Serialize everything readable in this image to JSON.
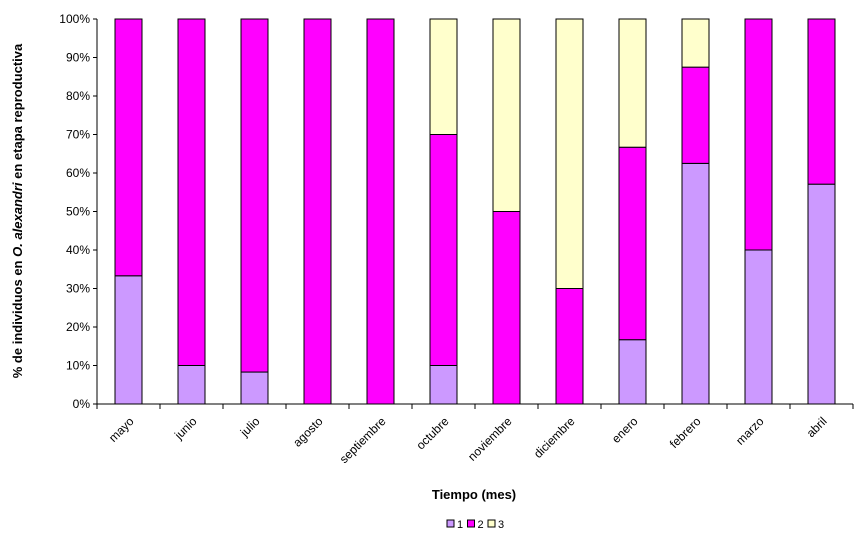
{
  "chart_data": {
    "type": "bar",
    "stacked": "percent",
    "categories": [
      "mayo",
      "junio",
      "julio",
      "agosto",
      "septiembre",
      "octubre",
      "noviembre",
      "diciembre",
      "enero",
      "febrero",
      "marzo",
      "abril"
    ],
    "series": [
      {
        "name": "1",
        "color": "#CC99FF",
        "values": [
          33.3,
          10,
          8.3,
          0,
          0,
          10,
          0,
          0,
          16.7,
          62.5,
          40,
          57.1
        ]
      },
      {
        "name": "2",
        "color": "#FF00FF",
        "values": [
          66.7,
          90,
          91.7,
          100,
          100,
          60,
          50,
          30,
          50,
          25,
          60,
          42.9
        ]
      },
      {
        "name": "3",
        "color": "#FFFFCC",
        "values": [
          0,
          0,
          0,
          0,
          0,
          30,
          50,
          70,
          33.3,
          12.5,
          0,
          0
        ]
      }
    ],
    "ylim": [
      0,
      100
    ],
    "yticks": [
      "0%",
      "10%",
      "20%",
      "30%",
      "40%",
      "50%",
      "60%",
      "70%",
      "80%",
      "90%",
      "100%"
    ],
    "xlabel": "Tiempo (mes)",
    "ylabel_parts": [
      "% de individuos en ",
      "O. alexandri",
      " en etapa reproductiva"
    ],
    "legend_position": "bottom",
    "grid": false
  }
}
